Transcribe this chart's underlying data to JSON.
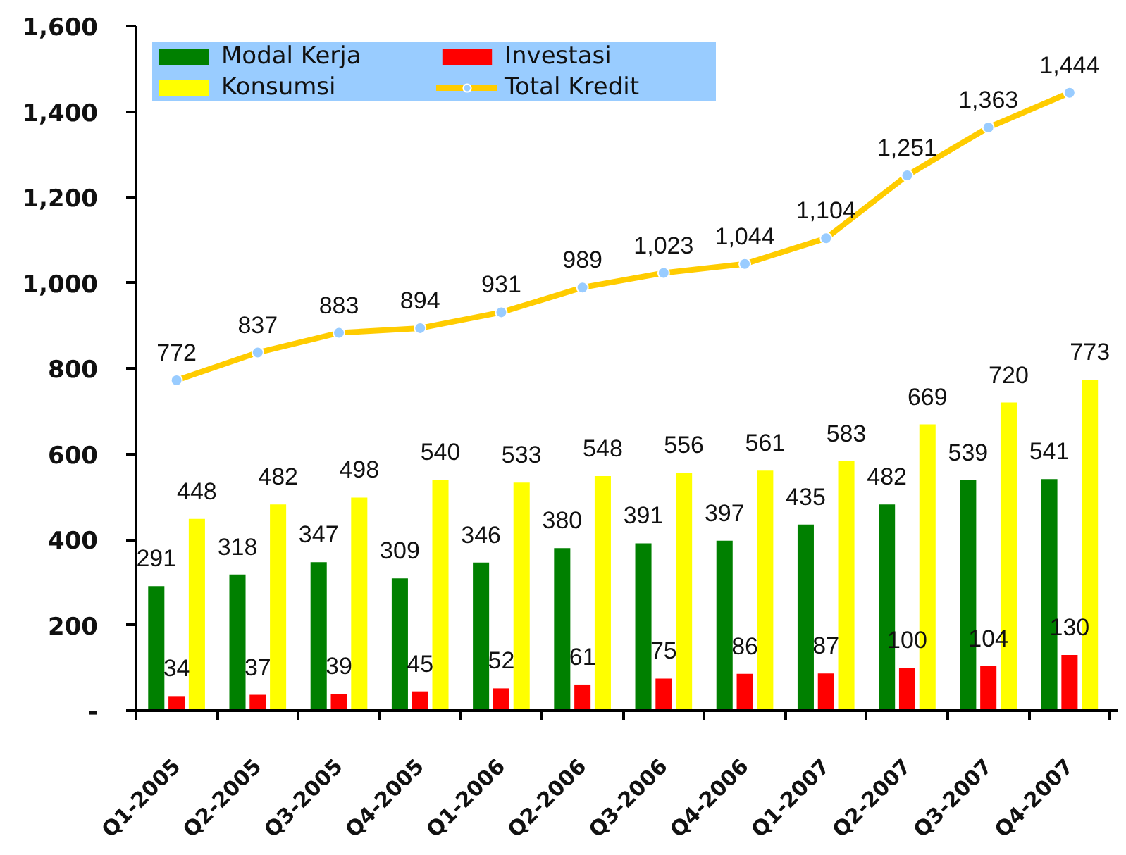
{
  "chart_data": {
    "type": "bar",
    "categories": [
      "Q1-2005",
      "Q2-2005",
      "Q3-2005",
      "Q4-2005",
      "Q1-2006",
      "Q2-2006",
      "Q3-2006",
      "Q4-2006",
      "Q1-2007",
      "Q2-2007",
      "Q3-2007",
      "Q4-2007"
    ],
    "series": [
      {
        "name": "Modal Kerja",
        "color": "#008000",
        "values": [
          291,
          318,
          347,
          309,
          346,
          380,
          391,
          397,
          435,
          482,
          539,
          541
        ]
      },
      {
        "name": "Investasi",
        "color": "#ff0000",
        "values": [
          34,
          37,
          39,
          45,
          52,
          61,
          75,
          86,
          87,
          100,
          104,
          130
        ]
      },
      {
        "name": "Konsumsi",
        "color": "#ffff00",
        "values": [
          448,
          482,
          498,
          540,
          533,
          548,
          556,
          561,
          583,
          669,
          720,
          773
        ]
      },
      {
        "name": "Total Kredit",
        "type": "line",
        "color": "#ffcc00",
        "marker": "circle",
        "line_style": "solid",
        "values": [
          772,
          837,
          883,
          894,
          931,
          989,
          1023,
          1044,
          1104,
          1251,
          1363,
          1444
        ],
        "value_labels": [
          "772",
          "837",
          "883",
          "894",
          "931",
          "989",
          "1,023",
          "1,044",
          "1,104",
          "1,251",
          "1,363",
          "1,444"
        ]
      }
    ],
    "ylim": [
      0,
      1600
    ],
    "yticks": [
      {
        "value": 0,
        "label": "-"
      },
      200,
      400,
      600,
      800,
      {
        "value": 1000,
        "label": "1,000"
      },
      {
        "value": 1200,
        "label": "1,200"
      },
      {
        "value": 1400,
        "label": "1,400"
      },
      {
        "value": 1600,
        "label": "1,600"
      }
    ],
    "data_labels": true,
    "legend": "top left",
    "grid": false
  }
}
